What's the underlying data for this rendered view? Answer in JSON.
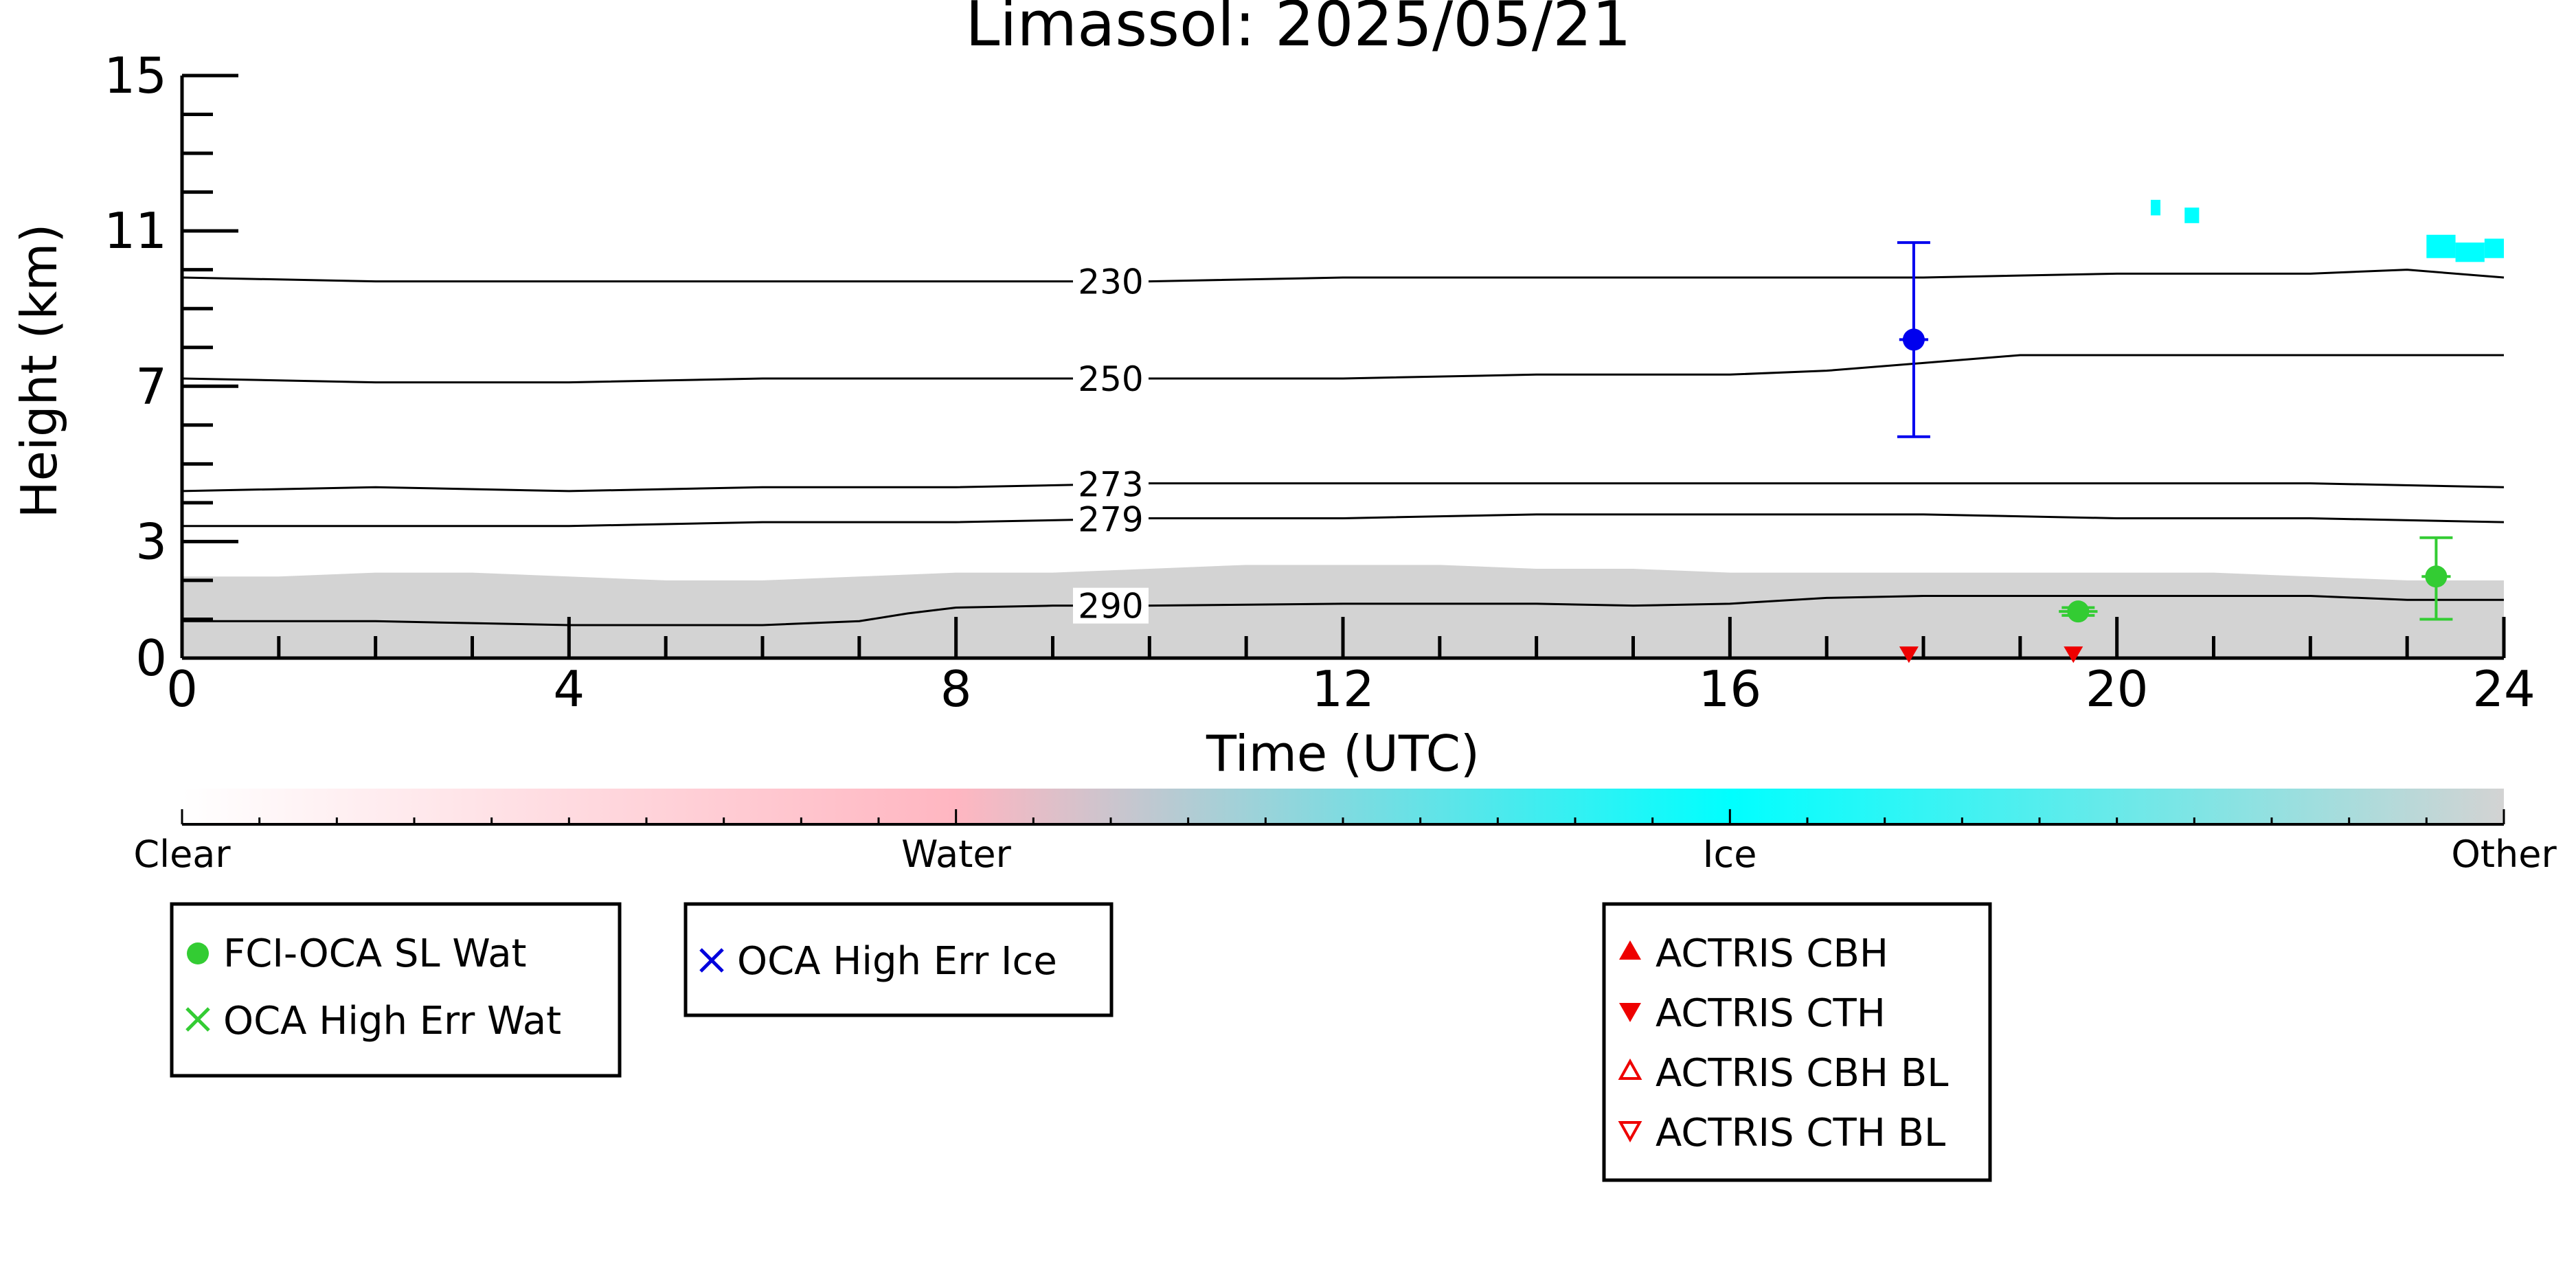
{
  "chart_data": {
    "type": "scatter",
    "title": "Limassol: 2025/05/21",
    "xlabel": "Time (UTC)",
    "ylabel": "Height (km)",
    "xlim": [
      0,
      24
    ],
    "ylim": [
      0,
      15
    ],
    "xticks": [
      0,
      4,
      8,
      12,
      16,
      20,
      24
    ],
    "yticks": [
      0,
      3,
      7,
      11,
      15
    ],
    "background": {
      "name": "cloud phase",
      "other_layer_top_km": [
        [
          0,
          2.1
        ],
        [
          1,
          2.1
        ],
        [
          2,
          2.2
        ],
        [
          3,
          2.2
        ],
        [
          4,
          2.1
        ],
        [
          5,
          2.0
        ],
        [
          6,
          2.0
        ],
        [
          7,
          2.1
        ],
        [
          8,
          2.2
        ],
        [
          9,
          2.2
        ],
        [
          10,
          2.3
        ],
        [
          11,
          2.4
        ],
        [
          12,
          2.4
        ],
        [
          13,
          2.4
        ],
        [
          14,
          2.3
        ],
        [
          15,
          2.3
        ],
        [
          16,
          2.2
        ],
        [
          17,
          2.2
        ],
        [
          18,
          2.2
        ],
        [
          19,
          2.2
        ],
        [
          20,
          2.2
        ],
        [
          21,
          2.2
        ],
        [
          22,
          2.1
        ],
        [
          23,
          2.0
        ],
        [
          24,
          2.0
        ]
      ],
      "ice_patches": [
        {
          "x": [
            20.35,
            20.45
          ],
          "y": [
            11.4,
            11.8
          ]
        },
        {
          "x": [
            20.7,
            20.85
          ],
          "y": [
            11.2,
            11.6
          ]
        },
        {
          "x": [
            23.2,
            23.5
          ],
          "y": [
            10.3,
            10.9
          ]
        },
        {
          "x": [
            23.5,
            23.8
          ],
          "y": [
            10.2,
            10.7
          ]
        },
        {
          "x": [
            23.8,
            24.0
          ],
          "y": [
            10.3,
            10.8
          ]
        }
      ]
    },
    "isotherms": [
      {
        "label": "230",
        "label_x": 9.6,
        "points": [
          [
            0,
            9.8
          ],
          [
            2,
            9.7
          ],
          [
            4,
            9.7
          ],
          [
            6,
            9.7
          ],
          [
            8,
            9.7
          ],
          [
            10,
            9.7
          ],
          [
            12,
            9.8
          ],
          [
            14,
            9.8
          ],
          [
            16,
            9.8
          ],
          [
            18,
            9.8
          ],
          [
            20,
            9.9
          ],
          [
            22,
            9.9
          ],
          [
            23,
            10.0
          ],
          [
            24,
            9.8
          ]
        ]
      },
      {
        "label": "250",
        "label_x": 9.6,
        "points": [
          [
            0,
            7.2
          ],
          [
            2,
            7.1
          ],
          [
            4,
            7.1
          ],
          [
            6,
            7.2
          ],
          [
            8,
            7.2
          ],
          [
            10,
            7.2
          ],
          [
            12,
            7.2
          ],
          [
            14,
            7.3
          ],
          [
            16,
            7.3
          ],
          [
            17,
            7.4
          ],
          [
            18,
            7.6
          ],
          [
            19,
            7.8
          ],
          [
            20,
            7.8
          ],
          [
            22,
            7.8
          ],
          [
            24,
            7.8
          ]
        ]
      },
      {
        "label": "273",
        "label_x": 9.6,
        "points": [
          [
            0,
            4.3
          ],
          [
            2,
            4.4
          ],
          [
            4,
            4.3
          ],
          [
            6,
            4.4
          ],
          [
            8,
            4.4
          ],
          [
            10,
            4.5
          ],
          [
            12,
            4.5
          ],
          [
            14,
            4.5
          ],
          [
            16,
            4.5
          ],
          [
            18,
            4.5
          ],
          [
            20,
            4.5
          ],
          [
            22,
            4.5
          ],
          [
            24,
            4.4
          ]
        ]
      },
      {
        "label": "279",
        "label_x": 9.6,
        "points": [
          [
            0,
            3.4
          ],
          [
            2,
            3.4
          ],
          [
            4,
            3.4
          ],
          [
            6,
            3.5
          ],
          [
            8,
            3.5
          ],
          [
            10,
            3.6
          ],
          [
            12,
            3.6
          ],
          [
            14,
            3.7
          ],
          [
            16,
            3.7
          ],
          [
            18,
            3.7
          ],
          [
            20,
            3.6
          ],
          [
            22,
            3.6
          ],
          [
            24,
            3.5
          ]
        ]
      },
      {
        "label": "290",
        "label_x": 9.6,
        "points": [
          [
            0,
            0.95
          ],
          [
            2,
            0.95
          ],
          [
            3,
            0.9
          ],
          [
            4,
            0.85
          ],
          [
            5,
            0.85
          ],
          [
            6,
            0.85
          ],
          [
            7,
            0.95
          ],
          [
            7.5,
            1.15
          ],
          [
            8,
            1.3
          ],
          [
            9,
            1.35
          ],
          [
            10,
            1.35
          ],
          [
            12,
            1.4
          ],
          [
            14,
            1.4
          ],
          [
            15,
            1.35
          ],
          [
            16,
            1.4
          ],
          [
            17,
            1.55
          ],
          [
            18,
            1.6
          ],
          [
            19,
            1.6
          ],
          [
            20,
            1.6
          ],
          [
            21,
            1.6
          ],
          [
            22,
            1.6
          ],
          [
            23,
            1.5
          ],
          [
            24,
            1.5
          ]
        ]
      }
    ],
    "series": [
      {
        "name": "FCI-OCA SL Wat",
        "color": "#33cc33",
        "marker": "filled-circle",
        "points": [
          {
            "x": 19.6,
            "y": 1.2,
            "yerr_low": 1.1,
            "yerr_high": 1.3,
            "xerr": 0.2
          },
          {
            "x": 23.3,
            "y": 2.1,
            "yerr_low": 1.0,
            "yerr_high": 3.1,
            "xerr": 0.15
          }
        ]
      },
      {
        "name": "OCA High Err Wat",
        "color": "#33cc33",
        "marker": "x",
        "points": []
      },
      {
        "name": "OCA High Err Ice",
        "color": "#0000dd",
        "marker": "x",
        "points": []
      },
      {
        "name": "",
        "color": "#0000ee",
        "marker": "filled-circle",
        "points": [
          {
            "x": 17.9,
            "y": 8.2,
            "yerr_low": 5.7,
            "yerr_high": 10.7,
            "xerr": 0.15
          }
        ]
      },
      {
        "name": "ACTRIS CBH",
        "color": "#ee0000",
        "marker": "triangle-up",
        "points": []
      },
      {
        "name": "ACTRIS CTH",
        "color": "#ee0000",
        "marker": "triangle-down",
        "points": [
          {
            "x": 17.85,
            "y": 0.05
          },
          {
            "x": 19.55,
            "y": 0.05
          }
        ]
      },
      {
        "name": "ACTRIS CBH BL",
        "color": "#ee0000",
        "marker": "triangle-up-open",
        "points": []
      },
      {
        "name": "ACTRIS CTH BL",
        "color": "#ee0000",
        "marker": "triangle-down-open",
        "points": []
      }
    ],
    "colorbar": {
      "labels": [
        "Clear",
        "Water",
        "Ice",
        "Other"
      ],
      "colors": [
        "#ffffff",
        "#ffb6c1",
        "#00ffff",
        "#d3d3d3"
      ]
    },
    "legends": [
      {
        "entries": [
          "FCI-OCA SL Wat",
          "OCA High Err Wat"
        ]
      },
      {
        "entries": [
          "OCA High Err Ice"
        ]
      },
      {
        "entries": [
          "ACTRIS CBH",
          "ACTRIS CTH",
          "ACTRIS CBH BL",
          "ACTRIS CTH BL"
        ]
      }
    ]
  }
}
